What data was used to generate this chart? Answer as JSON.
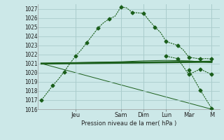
{
  "background_color": "#cce8e8",
  "grid_color": "#aacccc",
  "line_color": "#1a5e1a",
  "xlabel_text": "Pression niveau de la mer( hPa )",
  "ylim": [
    1016,
    1027.5
  ],
  "yticks": [
    1016,
    1017,
    1018,
    1019,
    1020,
    1021,
    1022,
    1023,
    1024,
    1025,
    1026,
    1027
  ],
  "day_labels": [
    "Jeu",
    "Sam",
    "Dim",
    "Lun",
    "Mar",
    "M"
  ],
  "day_positions": [
    3.0,
    7.0,
    9.0,
    11.0,
    13.0,
    15.0
  ],
  "xlim": [
    -0.3,
    15.7
  ],
  "series1_dotted": {
    "x": [
      0,
      0.5,
      1,
      1.5,
      2,
      2.5,
      3,
      3.5,
      4,
      4.5,
      5,
      5.5,
      6,
      6.5,
      7,
      7.5,
      8,
      8.5,
      9,
      9.5,
      10,
      10.5,
      11,
      11.5,
      12,
      12.5,
      13,
      13.5,
      14,
      14.5,
      15
    ],
    "y": [
      1017.0,
      1017.8,
      1018.6,
      1019.3,
      1020.1,
      1021.0,
      1021.8,
      1022.5,
      1023.3,
      1024.1,
      1024.9,
      1025.5,
      1025.9,
      1026.2,
      1027.2,
      1027.1,
      1026.6,
      1026.55,
      1026.5,
      1025.7,
      1025.0,
      1024.4,
      1023.4,
      1023.2,
      1023.0,
      1022.5,
      1021.7,
      1021.6,
      1021.5,
      1021.55,
      1021.5
    ]
  },
  "series1_markers": {
    "x": [
      0,
      1,
      2,
      3,
      4,
      5,
      6,
      7,
      8,
      9,
      10,
      11,
      12,
      13,
      14,
      15
    ],
    "y": [
      1017.0,
      1018.6,
      1020.1,
      1021.8,
      1023.3,
      1024.9,
      1025.9,
      1027.2,
      1026.6,
      1026.5,
      1025.0,
      1023.4,
      1023.0,
      1021.7,
      1021.5,
      1021.5
    ]
  },
  "series2_flat": {
    "x": [
      0,
      15
    ],
    "y": [
      1021.0,
      1021.2
    ]
  },
  "series3_slight": {
    "x": [
      0,
      3,
      7,
      9,
      11,
      13,
      15
    ],
    "y": [
      1021.0,
      1021.1,
      1021.2,
      1021.3,
      1021.35,
      1021.3,
      1021.1
    ]
  },
  "series4_decline": {
    "x": [
      0,
      15
    ],
    "y": [
      1021.0,
      1016.0
    ]
  },
  "series5_lun": {
    "x": [
      11,
      12,
      13,
      14,
      15
    ],
    "y": [
      1021.8,
      1021.55,
      1019.8,
      1020.4,
      1019.8
    ]
  },
  "series5_markers": {
    "x": [
      11,
      12,
      13,
      14,
      15
    ],
    "y": [
      1021.8,
      1021.55,
      1019.8,
      1020.4,
      1019.8
    ]
  },
  "series6_late": {
    "x": [
      13,
      14,
      15
    ],
    "y": [
      1020.3,
      1018.1,
      1016.1
    ]
  },
  "series6_markers": {
    "x": [
      13,
      14,
      15
    ],
    "y": [
      1020.3,
      1018.1,
      1016.1
    ]
  }
}
